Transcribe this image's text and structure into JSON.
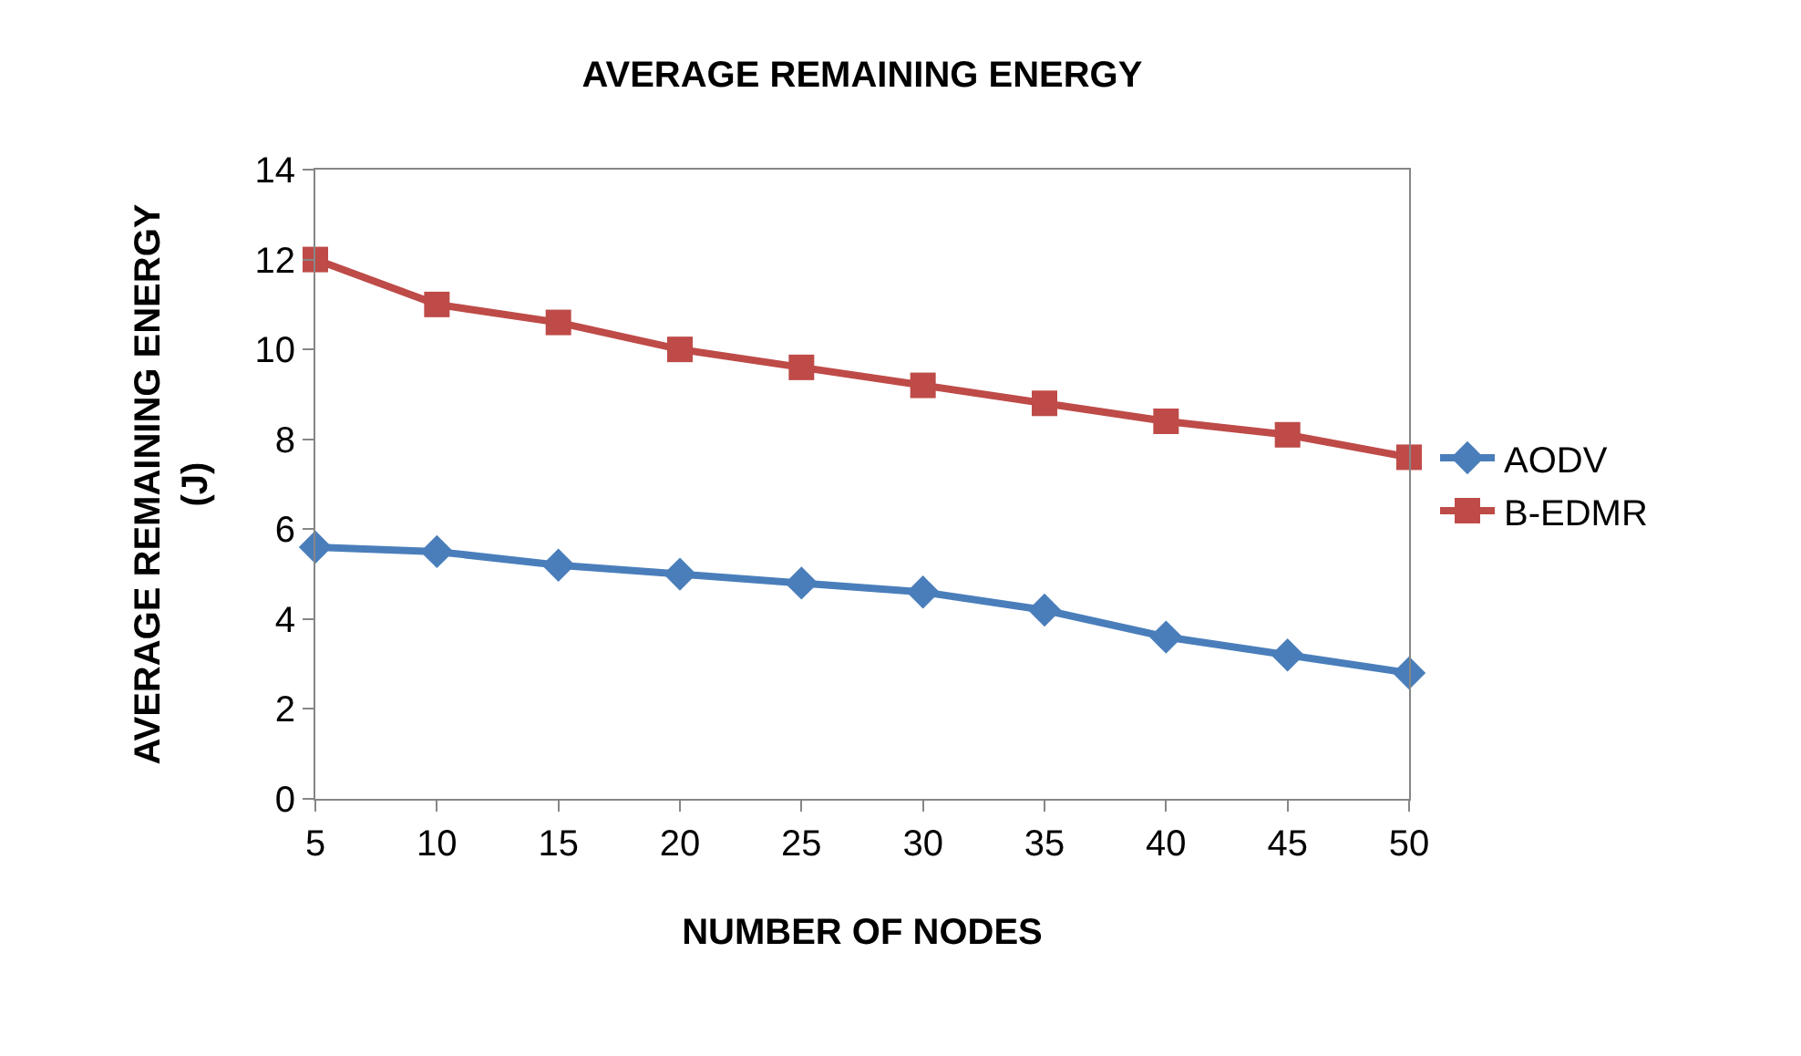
{
  "chart_data": {
    "type": "line",
    "title": "AVERAGE REMAINING ENERGY",
    "xlabel": "NUMBER OF NODES",
    "ylabel": "AVERAGE REMAINING ENERGY\n(J)",
    "categories": [
      "5",
      "10",
      "15",
      "20",
      "25",
      "30",
      "35",
      "40",
      "45",
      "50"
    ],
    "series": [
      {
        "name": "AODV",
        "color": "#4a7ebb",
        "marker": "diamond",
        "values": [
          5.6,
          5.5,
          5.2,
          5.0,
          4.8,
          4.6,
          4.2,
          3.6,
          3.2,
          2.8
        ]
      },
      {
        "name": "B-EDMR",
        "color": "#be4b48",
        "marker": "square",
        "values": [
          12,
          11,
          10.6,
          10,
          9.6,
          9.2,
          8.8,
          8.4,
          8.1,
          7.6
        ]
      }
    ],
    "ylim": [
      0,
      14
    ],
    "yticks": [
      0,
      2,
      4,
      6,
      8,
      10,
      12,
      14
    ],
    "legend": "right",
    "line_style": "solid"
  }
}
